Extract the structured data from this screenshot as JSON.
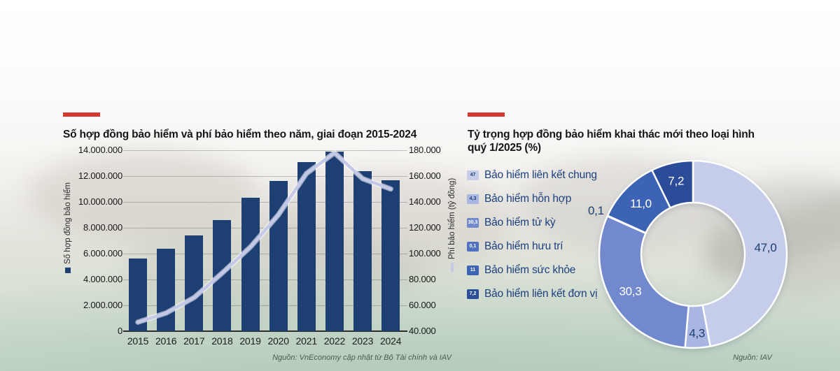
{
  "accent_color": "#d7372e",
  "left_chart": {
    "title": "Số hợp đồng bảo hiểm và phí bảo hiểm theo năm, giai đoạn 2015-2024",
    "y_left_axis_label": "Số hợp đồng bảo hiểm",
    "y_right_axis_label": "Phí bảo hiểm (tỷ đồng)",
    "source": "Nguồn: VnEconomy cập nhật từ Bộ Tài chính và IAV"
  },
  "right_chart": {
    "title_lines": [
      "Tỷ trọng hợp đồng bảo hiểm khai thác mới theo loại hình",
      "quý 1/2025 (%)"
    ],
    "source": "Nguồn: IAV"
  },
  "chart_data": [
    {
      "type": "bar",
      "subtype": "bar+line, dual y-axis",
      "title": "Số hợp đồng bảo hiểm và phí bảo hiểm theo năm, giai đoạn 2015-2024",
      "categories": [
        "2015",
        "2016",
        "2017",
        "2018",
        "2019",
        "2020",
        "2021",
        "2022",
        "2023",
        "2024"
      ],
      "series": [
        {
          "name": "Số hợp đồng bảo hiểm",
          "type": "bar",
          "axis": "left",
          "color": "#1e3f73",
          "values": [
            5600000,
            6400000,
            7400000,
            8600000,
            10300000,
            11600000,
            13100000,
            13900000,
            12400000,
            11700000
          ]
        },
        {
          "name": "Phí bảo hiểm (tỷ đồng)",
          "type": "line",
          "axis": "right",
          "color": "#c3c9e6",
          "values": [
            47000,
            54000,
            66000,
            85000,
            105000,
            130000,
            162000,
            178000,
            158000,
            150000
          ]
        }
      ],
      "y_left": {
        "min": 0,
        "max": 14000000,
        "step": 2000000,
        "tick_labels": [
          "0",
          "2.000.000",
          "4.000.000",
          "6.000.000",
          "8.000.000",
          "10.000.000",
          "12.000.000",
          "14.000.000"
        ]
      },
      "y_right": {
        "min": 40000,
        "max": 180000,
        "step": 20000,
        "tick_labels": [
          "40.000",
          "60.000",
          "80.000",
          "100.000",
          "120.000",
          "140.000",
          "160.000",
          "180.000"
        ]
      },
      "grid": true
    },
    {
      "type": "pie",
      "subtype": "donut",
      "title": "Tỷ trọng hợp đồng bảo hiểm khai thác mới theo loại hình quý 1/2025 (%)",
      "legend_position": "left",
      "slices": [
        {
          "label": "Bảo hiểm liên kết chung",
          "value": 47.0,
          "display": "47,0",
          "swatch_text": "47",
          "color": "#c6cdea",
          "slice_label_color": "#1d3e72",
          "swatch_text_color": "#1d3e72",
          "label_inside": true
        },
        {
          "label": "Bảo hiểm hỗn hợp",
          "value": 4.3,
          "display": "4,3",
          "swatch_text": "4,3",
          "color": "#a9b6e1",
          "slice_label_color": "#1d3e72",
          "swatch_text_color": "#1d3e72",
          "label_inside": true
        },
        {
          "label": "Bảo hiểm tử kỳ",
          "value": 30.3,
          "display": "30,3",
          "swatch_text": "30,3",
          "color": "#7289cd",
          "slice_label_color": "#ffffff",
          "swatch_text_color": "#ffffff",
          "label_inside": true
        },
        {
          "label": "Bảo hiểm hưu trí",
          "value": 0.1,
          "display": "0,1",
          "swatch_text": "0,1",
          "color": "#5170c1",
          "slice_label_color": "#1d3e72",
          "swatch_text_color": "#ffffff",
          "label_inside": false
        },
        {
          "label": "Bảo hiểm sức khỏe",
          "value": 11.0,
          "display": "11,0",
          "swatch_text": "11",
          "color": "#3d63b5",
          "slice_label_color": "#ffffff",
          "swatch_text_color": "#ffffff",
          "label_inside": true
        },
        {
          "label": "Bảo hiểm liên kết đơn vị",
          "value": 7.2,
          "display": "7,2",
          "swatch_text": "7,2",
          "color": "#2a4c99",
          "slice_label_color": "#ffffff",
          "swatch_text_color": "#ffffff",
          "label_inside": true
        }
      ]
    }
  ]
}
